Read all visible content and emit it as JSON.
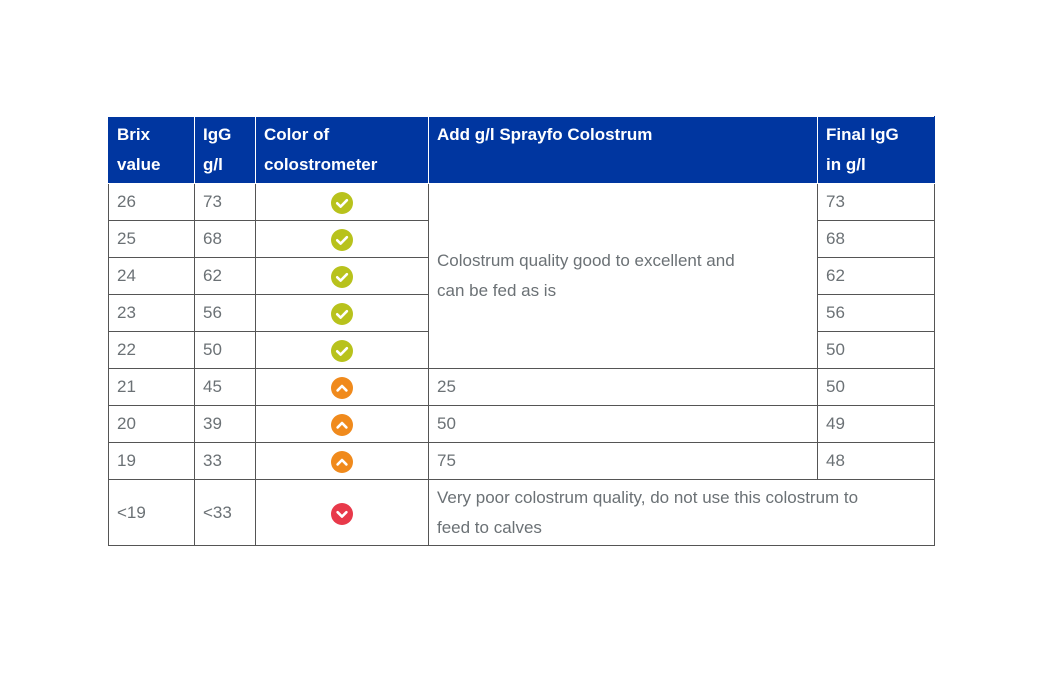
{
  "header": {
    "brix": [
      "Brix",
      "value"
    ],
    "igg": [
      "IgG",
      "g/l"
    ],
    "color": [
      "Color of",
      "colostrometer"
    ],
    "add": "Add g/l Sprayfo Colostrum",
    "final": [
      "Final IgG",
      "in g/l"
    ]
  },
  "colors": {
    "header_bg": "#0036a0",
    "good": "#b8c21c",
    "medium": "#f08a1c",
    "poor": "#e8394a"
  },
  "rows": [
    {
      "brix": "26",
      "igg": "73",
      "status": "good",
      "final": "73"
    },
    {
      "brix": "25",
      "igg": "68",
      "status": "good",
      "final": "68"
    },
    {
      "brix": "24",
      "igg": "62",
      "status": "good",
      "final": "62"
    },
    {
      "brix": "23",
      "igg": "56",
      "status": "good",
      "final": "56"
    },
    {
      "brix": "22",
      "igg": "50",
      "status": "good",
      "final": "50"
    },
    {
      "brix": "21",
      "igg": "45",
      "status": "medium",
      "add": "25",
      "final": "50"
    },
    {
      "brix": "20",
      "igg": "39",
      "status": "medium",
      "add": "50",
      "final": "49"
    },
    {
      "brix": "19",
      "igg": "33",
      "status": "medium",
      "add": "75",
      "final": "48"
    },
    {
      "brix": "<19",
      "igg": "<33",
      "status": "poor"
    }
  ],
  "merged_good_text": [
    "Colostrum quality good to excellent and",
    "can be fed as is"
  ],
  "poor_text": [
    "Very poor colostrum quality, do not use this colostrum to",
    "feed to calves"
  ],
  "icons": {
    "good": "check-circle-icon",
    "medium": "chevron-up-circle-icon",
    "poor": "chevron-down-circle-icon"
  }
}
